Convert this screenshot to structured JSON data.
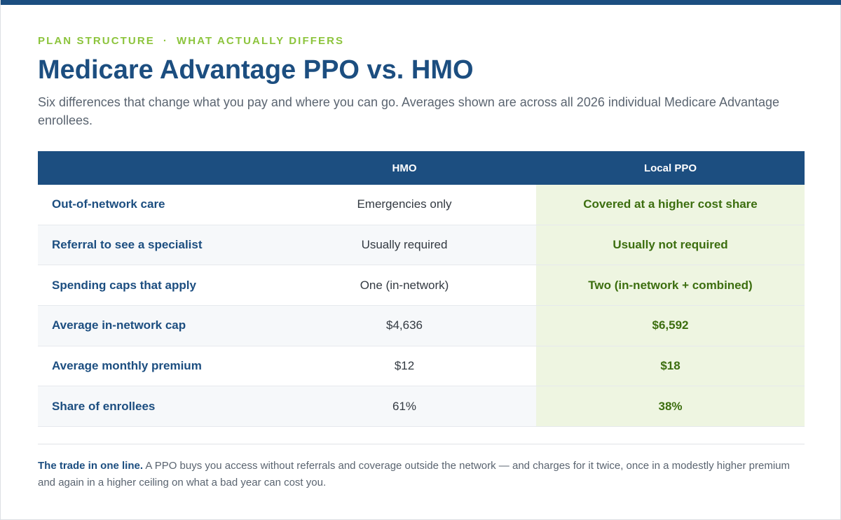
{
  "header": {
    "eyebrow_left": "PLAN STRUCTURE",
    "eyebrow_sep": "·",
    "eyebrow_right": "WHAT ACTUALLY DIFFERS",
    "title": "Medicare Advantage PPO vs. HMO",
    "subtitle": "Six differences that change what you pay and where you can go. Averages shown are across all 2026 individual Medicare Advantage enrollees."
  },
  "table": {
    "columns": {
      "label": "",
      "hmo": "HMO",
      "ppo": "Local PPO"
    },
    "rows": [
      {
        "label": "Out-of-network care",
        "hmo": "Emergencies only",
        "ppo": "Covered at a higher cost share"
      },
      {
        "label": "Referral to see a specialist",
        "hmo": "Usually required",
        "ppo": "Usually not required"
      },
      {
        "label": "Spending caps that apply",
        "hmo": "One (in-network)",
        "ppo": "Two (in-network + combined)"
      },
      {
        "label": "Average in-network cap",
        "hmo": "$4,636",
        "ppo": "$6,592"
      },
      {
        "label": "Average monthly premium",
        "hmo": "$12",
        "ppo": "$18"
      },
      {
        "label": "Share of enrollees",
        "hmo": "61%",
        "ppo": "38%"
      }
    ]
  },
  "footnote": {
    "lead": "The trade in one line.",
    "body": " A PPO buys you access without referrals and coverage outside the network — and charges for it twice, once in a modestly higher premium and again in a higher ceiling on what a bad year can cost you."
  },
  "colors": {
    "brand": "#1c4e80",
    "accent": "#8cc43c",
    "ppo_text": "#3c6e0f",
    "ppo_bg": "#eef5e1"
  }
}
